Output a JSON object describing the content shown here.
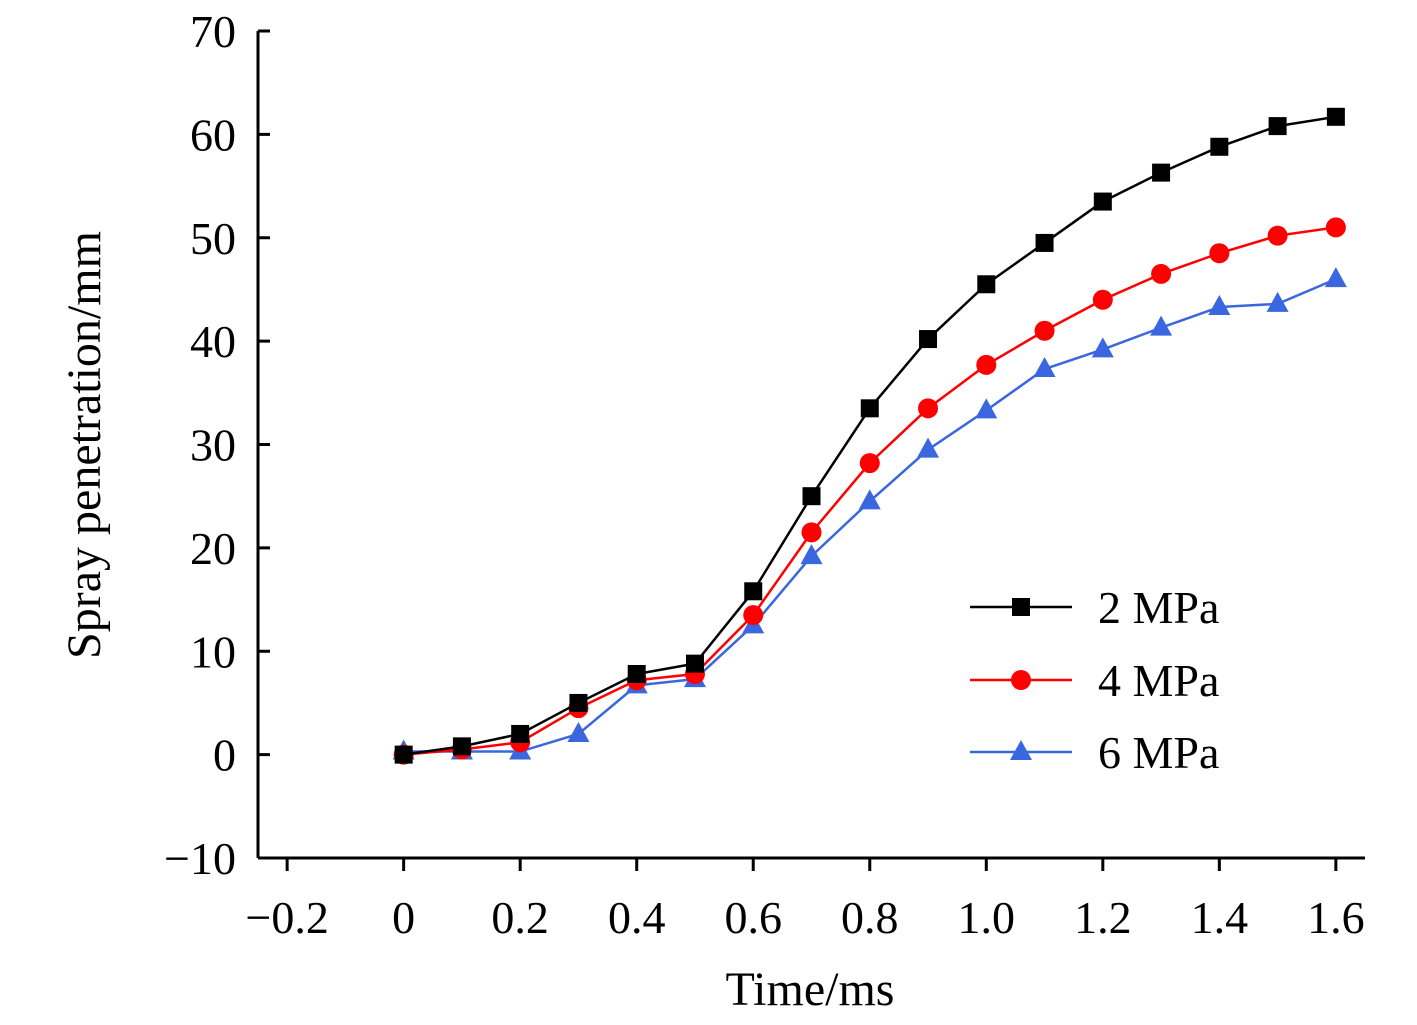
{
  "chart_data": {
    "type": "line",
    "title": "",
    "xlabel": "Time/ms",
    "ylabel": "Spray penetration/mm",
    "xlim": [
      -0.25,
      1.65
    ],
    "ylim": [
      -10,
      70
    ],
    "xticks": [
      -0.2,
      0,
      0.2,
      0.4,
      0.6,
      0.8,
      1.0,
      1.2,
      1.4,
      1.6
    ],
    "xtick_labels": [
      "−0.2",
      "0",
      "0.2",
      "0.4",
      "0.6",
      "0.8",
      "1.0",
      "1.2",
      "1.4",
      "1.6"
    ],
    "yticks": [
      -10,
      0,
      10,
      20,
      30,
      40,
      50,
      60,
      70
    ],
    "ytick_labels": [
      "−10",
      "0",
      "10",
      "20",
      "30",
      "40",
      "50",
      "60",
      "70"
    ],
    "x": [
      0,
      0.1,
      0.2,
      0.3,
      0.4,
      0.5,
      0.6,
      0.7,
      0.8,
      0.9,
      1.0,
      1.1,
      1.2,
      1.3,
      1.4,
      1.5,
      1.6
    ],
    "series": [
      {
        "name": "2 MPa",
        "color": "#000000",
        "marker": "square",
        "values": [
          0,
          0.8,
          2,
          5,
          7.8,
          8.8,
          15.8,
          25,
          33.5,
          40.2,
          45.5,
          49.5,
          53.5,
          56.3,
          58.8,
          60.8,
          61.7
        ]
      },
      {
        "name": "4 MPa",
        "color": "#ff0000",
        "marker": "circle",
        "values": [
          0,
          0.5,
          1.2,
          4.5,
          7.2,
          7.8,
          13.5,
          21.5,
          28.2,
          33.5,
          37.7,
          41,
          44,
          46.5,
          48.5,
          50.2,
          51
        ]
      },
      {
        "name": "6 MPa",
        "color": "#3a66e0",
        "marker": "triangle",
        "values": [
          0.3,
          0.3,
          0.3,
          2,
          6.7,
          7.3,
          12.5,
          19.2,
          24.5,
          29.5,
          33.3,
          37.3,
          39.2,
          41.3,
          43.3,
          43.6,
          46
        ]
      }
    ],
    "legend": {
      "position": "bottom-right"
    }
  }
}
